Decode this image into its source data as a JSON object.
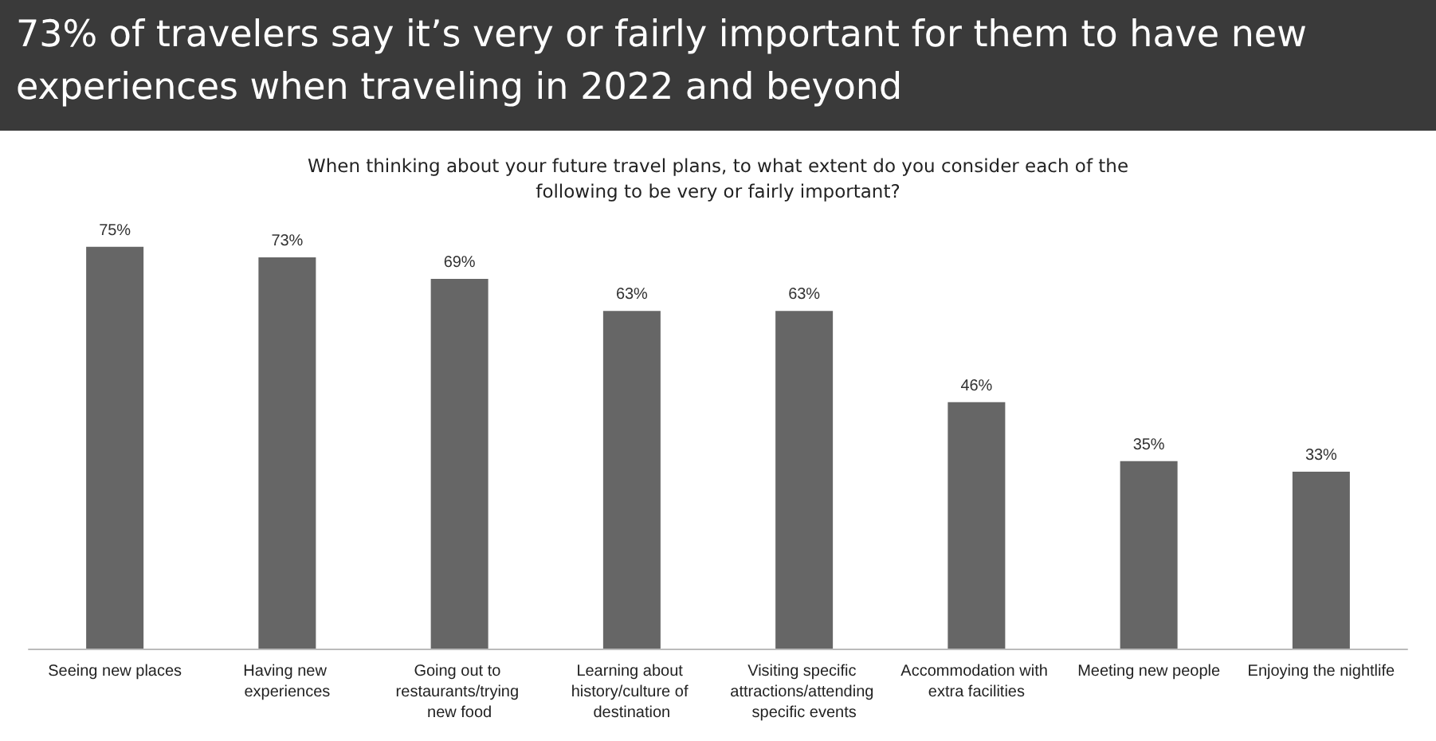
{
  "chart_data": {
    "type": "bar",
    "title": "73% of travelers say it’s very or fairly important for them to have new experiences when traveling in 2022 and beyond",
    "subtitle": "When thinking about your future travel plans, to what extent do you consider each of the following to be very or fairly important?",
    "categories": [
      "Seeing new places",
      "Having new experiences",
      "Going out to restaurants/trying new food",
      "Learning about history/culture of destination",
      "Visiting specific attractions/attending specific events",
      "Accommodation with extra facilities",
      "Meeting new people",
      "Enjoying the nightlife"
    ],
    "values": [
      75,
      73,
      69,
      63,
      63,
      46,
      35,
      33
    ],
    "value_labels": [
      "75%",
      "73%",
      "69%",
      "63%",
      "63%",
      "46%",
      "35%",
      "33%"
    ],
    "color": "#666666"
  }
}
